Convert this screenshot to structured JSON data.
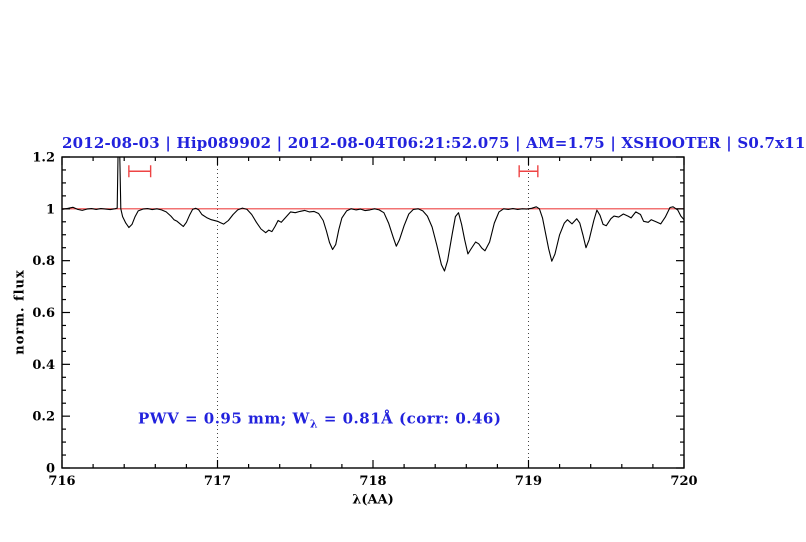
{
  "colors": {
    "title_blue": "#2222dd",
    "annotation_blue": "#2222dd",
    "continuum_red": "#ee4444",
    "spectrum_black": "#000000",
    "dotted_line": "#444444"
  },
  "chart_data": {
    "type": "line",
    "title": "2012-08-03 | Hip089902 | 2012-08-04T06:21:52.075 | AM=1.75 | XSHOOTER | S0.7x11",
    "xlabel": "λ(AA)",
    "ylabel": "norm. flux",
    "xlim": [
      716,
      720
    ],
    "ylim": [
      0,
      1.2
    ],
    "x_major_ticks": [
      716,
      717,
      718,
      719,
      720
    ],
    "x_tick_labels": [
      "716",
      "717",
      "718",
      "719",
      "720"
    ],
    "x_minor_step": 0.2,
    "y_major_ticks": [
      0,
      0.2,
      0.4,
      0.6,
      0.8,
      1,
      1.2
    ],
    "y_tick_labels": [
      "0",
      "0.2",
      "0.4",
      "0.6",
      "0.8",
      "1",
      "1.2"
    ],
    "y_minor_step": 0.05,
    "grid": false,
    "legend": null,
    "dotted_vlines": [
      717,
      719
    ],
    "continuum_line": {
      "y": 1.0
    },
    "interval_markers": [
      {
        "x_start": 716.43,
        "x_end": 716.57,
        "y": 1.145
      },
      {
        "x_start": 718.94,
        "x_end": 719.06,
        "y": 1.145
      }
    ],
    "annotation": {
      "prefix": "PWV = 0.95 mm; W",
      "subscript": "λ",
      "suffix": " = 0.81Å (corr: 0.46)",
      "x": 716.5,
      "y": 0.19
    },
    "series": [
      {
        "name": "spectrum",
        "points": [
          [
            716.0,
            0.998
          ],
          [
            716.04,
            1.002
          ],
          [
            716.07,
            1.006
          ],
          [
            716.1,
            0.998
          ],
          [
            716.13,
            0.994
          ],
          [
            716.16,
            0.999
          ],
          [
            716.19,
            1.001
          ],
          [
            716.22,
            0.998
          ],
          [
            716.25,
            1.001
          ],
          [
            716.28,
            0.999
          ],
          [
            716.31,
            0.997
          ],
          [
            716.34,
            1.0
          ],
          [
            716.355,
            1.003
          ],
          [
            716.36,
            1.2
          ],
          [
            716.372,
            1.2
          ],
          [
            716.378,
            1.0
          ],
          [
            716.39,
            0.97
          ],
          [
            716.41,
            0.945
          ],
          [
            716.43,
            0.928
          ],
          [
            716.45,
            0.94
          ],
          [
            716.47,
            0.97
          ],
          [
            716.49,
            0.992
          ],
          [
            716.52,
            0.999
          ],
          [
            716.55,
            1.001
          ],
          [
            716.58,
            0.997
          ],
          [
            716.61,
            1.0
          ],
          [
            716.64,
            0.996
          ],
          [
            716.67,
            0.988
          ],
          [
            716.7,
            0.972
          ],
          [
            716.72,
            0.958
          ],
          [
            716.74,
            0.952
          ],
          [
            716.76,
            0.942
          ],
          [
            716.78,
            0.932
          ],
          [
            716.8,
            0.948
          ],
          [
            716.82,
            0.975
          ],
          [
            716.84,
            0.998
          ],
          [
            716.86,
            1.002
          ],
          [
            716.88,
            0.996
          ],
          [
            716.9,
            0.978
          ],
          [
            716.93,
            0.966
          ],
          [
            716.96,
            0.958
          ],
          [
            717.0,
            0.952
          ],
          [
            717.02,
            0.946
          ],
          [
            717.04,
            0.941
          ],
          [
            717.07,
            0.955
          ],
          [
            717.1,
            0.978
          ],
          [
            717.13,
            0.996
          ],
          [
            717.16,
            1.003
          ],
          [
            717.19,
            0.998
          ],
          [
            717.22,
            0.978
          ],
          [
            717.25,
            0.948
          ],
          [
            717.28,
            0.922
          ],
          [
            717.31,
            0.908
          ],
          [
            717.33,
            0.918
          ],
          [
            717.35,
            0.912
          ],
          [
            717.37,
            0.932
          ],
          [
            717.39,
            0.955
          ],
          [
            717.41,
            0.948
          ],
          [
            717.44,
            0.968
          ],
          [
            717.47,
            0.988
          ],
          [
            717.5,
            0.985
          ],
          [
            717.53,
            0.99
          ],
          [
            717.56,
            0.994
          ],
          [
            717.59,
            0.988
          ],
          [
            717.62,
            0.99
          ],
          [
            717.65,
            0.982
          ],
          [
            717.68,
            0.955
          ],
          [
            717.7,
            0.915
          ],
          [
            717.72,
            0.87
          ],
          [
            717.74,
            0.843
          ],
          [
            717.76,
            0.862
          ],
          [
            717.78,
            0.92
          ],
          [
            717.8,
            0.965
          ],
          [
            717.83,
            0.992
          ],
          [
            717.86,
            1.0
          ],
          [
            717.89,
            0.996
          ],
          [
            717.92,
            0.999
          ],
          [
            717.95,
            0.993
          ],
          [
            717.98,
            0.996
          ],
          [
            718.01,
            1.0
          ],
          [
            718.04,
            0.996
          ],
          [
            718.07,
            0.985
          ],
          [
            718.1,
            0.945
          ],
          [
            718.13,
            0.89
          ],
          [
            718.15,
            0.856
          ],
          [
            718.17,
            0.88
          ],
          [
            718.2,
            0.935
          ],
          [
            718.23,
            0.98
          ],
          [
            718.26,
            0.998
          ],
          [
            718.29,
            1.0
          ],
          [
            718.32,
            0.992
          ],
          [
            718.35,
            0.972
          ],
          [
            718.38,
            0.93
          ],
          [
            718.41,
            0.86
          ],
          [
            718.44,
            0.785
          ],
          [
            718.46,
            0.76
          ],
          [
            718.48,
            0.8
          ],
          [
            718.51,
            0.905
          ],
          [
            718.53,
            0.97
          ],
          [
            718.55,
            0.985
          ],
          [
            718.57,
            0.94
          ],
          [
            718.59,
            0.88
          ],
          [
            718.61,
            0.826
          ],
          [
            718.63,
            0.845
          ],
          [
            718.66,
            0.872
          ],
          [
            718.68,
            0.865
          ],
          [
            718.7,
            0.848
          ],
          [
            718.72,
            0.838
          ],
          [
            718.75,
            0.872
          ],
          [
            718.78,
            0.945
          ],
          [
            718.81,
            0.988
          ],
          [
            718.84,
            1.0
          ],
          [
            718.87,
            0.998
          ],
          [
            718.9,
            1.001
          ],
          [
            718.93,
            0.998
          ],
          [
            718.96,
            1.0
          ],
          [
            718.99,
            0.999
          ],
          [
            719.02,
            1.002
          ],
          [
            719.05,
            1.008
          ],
          [
            719.07,
            1.0
          ],
          [
            719.09,
            0.965
          ],
          [
            719.11,
            0.905
          ],
          [
            719.13,
            0.845
          ],
          [
            719.15,
            0.798
          ],
          [
            719.17,
            0.825
          ],
          [
            719.2,
            0.9
          ],
          [
            719.23,
            0.945
          ],
          [
            719.25,
            0.958
          ],
          [
            719.28,
            0.942
          ],
          [
            719.31,
            0.962
          ],
          [
            719.33,
            0.945
          ],
          [
            719.35,
            0.9
          ],
          [
            719.37,
            0.85
          ],
          [
            719.39,
            0.88
          ],
          [
            719.42,
            0.955
          ],
          [
            719.44,
            0.995
          ],
          [
            719.46,
            0.975
          ],
          [
            719.48,
            0.94
          ],
          [
            719.5,
            0.935
          ],
          [
            719.53,
            0.962
          ],
          [
            719.55,
            0.972
          ],
          [
            719.58,
            0.968
          ],
          [
            719.61,
            0.98
          ],
          [
            719.64,
            0.972
          ],
          [
            719.66,
            0.965
          ],
          [
            719.69,
            0.988
          ],
          [
            719.72,
            0.978
          ],
          [
            719.74,
            0.952
          ],
          [
            719.77,
            0.948
          ],
          [
            719.79,
            0.958
          ],
          [
            719.82,
            0.95
          ],
          [
            719.85,
            0.942
          ],
          [
            719.88,
            0.968
          ],
          [
            719.91,
            1.005
          ],
          [
            719.93,
            1.008
          ],
          [
            719.96,
            0.995
          ],
          [
            719.98,
            0.972
          ],
          [
            720.0,
            0.958
          ]
        ]
      }
    ]
  }
}
